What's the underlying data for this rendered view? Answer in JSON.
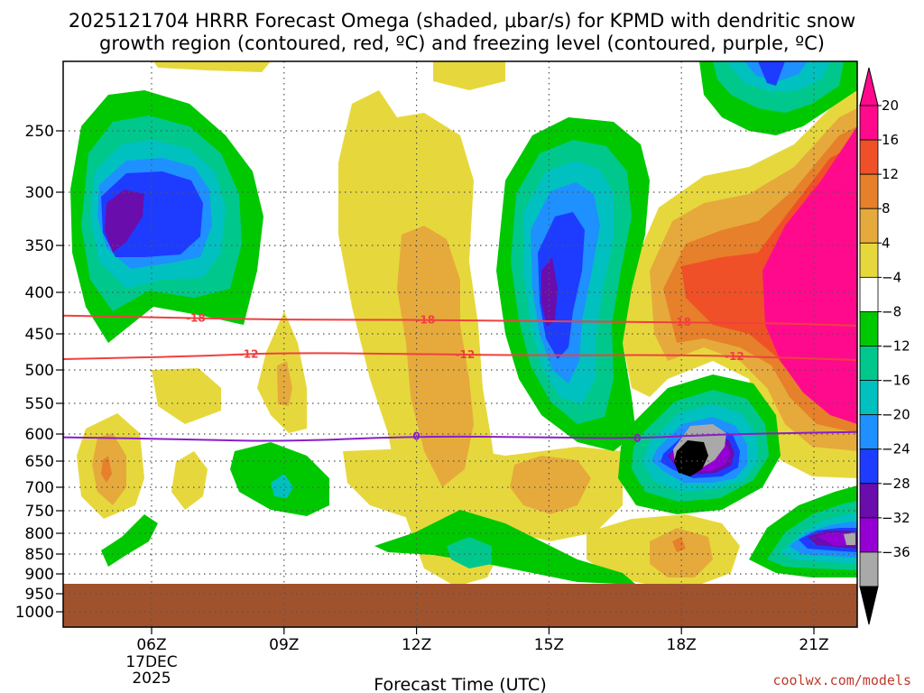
{
  "chart_data": {
    "type": "heatmap",
    "title_line1": "2025121704 HRRR Forecast Omega (shaded, μbar/s) for KPMD with dendritic snow",
    "title_line2": "growth region (contoured, red, ºC) and freezing level (contoured, purple, ºC)",
    "xlabel": "Forecast Time (UTC)",
    "credit": "coolwx.com/models",
    "x_range_hours": [
      4,
      22.67
    ],
    "x_ticks": [
      {
        "hour": 6,
        "label": "06Z",
        "sub1": "17DEC",
        "sub2": "2025"
      },
      {
        "hour": 9,
        "label": "09Z"
      },
      {
        "hour": 12,
        "label": "12Z"
      },
      {
        "hour": 15,
        "label": "15Z"
      },
      {
        "hour": 18,
        "label": "18Z"
      },
      {
        "hour": 21,
        "label": "21Z"
      }
    ],
    "y_axis": "pressure_hPa",
    "y_ticks": [
      {
        "p": 250,
        "label": "250"
      },
      {
        "p": 300,
        "label": "300"
      },
      {
        "p": 350,
        "label": "350"
      },
      {
        "p": 400,
        "label": "400"
      },
      {
        "p": 450,
        "label": "450"
      },
      {
        "p": 500,
        "label": "500"
      },
      {
        "p": 550,
        "label": "550"
      },
      {
        "p": 600,
        "label": "600"
      },
      {
        "p": 650,
        "label": "650"
      },
      {
        "p": 700,
        "label": "700"
      },
      {
        "p": 750,
        "label": "750"
      },
      {
        "p": 800,
        "label": "800"
      },
      {
        "p": 850,
        "label": "850"
      },
      {
        "p": 900,
        "label": "900"
      },
      {
        "p": 950,
        "label": "950"
      },
      {
        "p": 1000,
        "label": "1000"
      }
    ],
    "ground_top_hPa": 925,
    "colors": {
      "ground": "#a0522d",
      "neg36": "#000000",
      "neg32": "#a9a9a9",
      "neg28": "#9400d3",
      "neg24": "#6a0dad",
      "neg20": "#1e3cff",
      "neg16": "#1e90ff",
      "neg12": "#00c0c0",
      "neg8": "#00c88c",
      "neg4": "#00c800",
      "zero": "#ffffff",
      "pos4": "#e6d83c",
      "pos8": "#e6aa3c",
      "pos12": "#e6802a",
      "pos16": "#f05028",
      "pos20": "#ff0a8c",
      "dgz": "#f04040",
      "freezing": "#8a1ec8"
    },
    "colorbar": [
      {
        "label": "20",
        "color": "#ff0a8c"
      },
      {
        "label": "16",
        "color": "#f05028"
      },
      {
        "label": "12",
        "color": "#e6802a"
      },
      {
        "label": "8",
        "color": "#e6aa3c"
      },
      {
        "label": "4",
        "color": "#e6d83c"
      },
      {
        "label": "−4",
        "color": "#ffffff"
      },
      {
        "label": "−8",
        "color": "#00c800"
      },
      {
        "label": "−12",
        "color": "#00c88c"
      },
      {
        "label": "−16",
        "color": "#00c0c0"
      },
      {
        "label": "−20",
        "color": "#1e90ff"
      },
      {
        "label": "−24",
        "color": "#1e3cff"
      },
      {
        "label": "−28",
        "color": "#6a0dad"
      },
      {
        "label": "−32",
        "color": "#9400d3"
      },
      {
        "label": "−36",
        "color": "#a9a9a9"
      }
    ],
    "colorbar_levels": [
      "20",
      "16",
      "12",
      "8",
      "4",
      "−4",
      "−8",
      "−12",
      "−16",
      "−20",
      "−24",
      "−28",
      "−32",
      "−36"
    ],
    "contours": [
      {
        "name": "dgz-minus18",
        "label": "-18",
        "color": "#f04040",
        "points": [
          [
            4,
            428
          ],
          [
            6,
            430
          ],
          [
            9,
            433
          ],
          [
            12,
            433
          ],
          [
            15,
            435
          ],
          [
            18,
            436
          ],
          [
            21,
            438
          ],
          [
            22.67,
            442
          ]
        ],
        "label_hours": [
          7.0,
          12.2,
          18.0
        ]
      },
      {
        "name": "dgz-minus12",
        "label": "-12",
        "color": "#f04040",
        "points": [
          [
            4,
            485
          ],
          [
            7,
            481
          ],
          [
            9,
            476
          ],
          [
            12,
            478
          ],
          [
            15,
            480
          ],
          [
            18,
            479
          ],
          [
            21,
            484
          ],
          [
            22.67,
            488
          ]
        ],
        "label_hours": [
          8.2,
          13.1,
          19.2
        ]
      },
      {
        "name": "freezing-level-0",
        "label": "0",
        "color": "#8a1ec8",
        "points": [
          [
            4,
            606
          ],
          [
            7,
            610
          ],
          [
            9,
            614
          ],
          [
            12,
            604
          ],
          [
            15,
            606
          ],
          [
            17,
            608
          ],
          [
            19,
            600
          ],
          [
            22.67,
            596
          ]
        ],
        "label_hours": [
          12.0,
          17.0
        ]
      }
    ],
    "omega_features": [
      {
        "name": "upper-left-rising-cell",
        "hour": 5.8,
        "p": 305,
        "min": -28
      },
      {
        "name": "mid-column-rising-cell",
        "hour": 15.0,
        "p": 390,
        "min": -28
      },
      {
        "name": "low-level-rising-cell",
        "hour": 18.2,
        "p": 640,
        "min": -36
      },
      {
        "name": "upper-right-sinking-cell",
        "hour": 22.3,
        "p": 330,
        "max": 20
      },
      {
        "name": "lower-right-rising-cell",
        "hour": 22.4,
        "p": 805,
        "min": -32
      }
    ]
  }
}
